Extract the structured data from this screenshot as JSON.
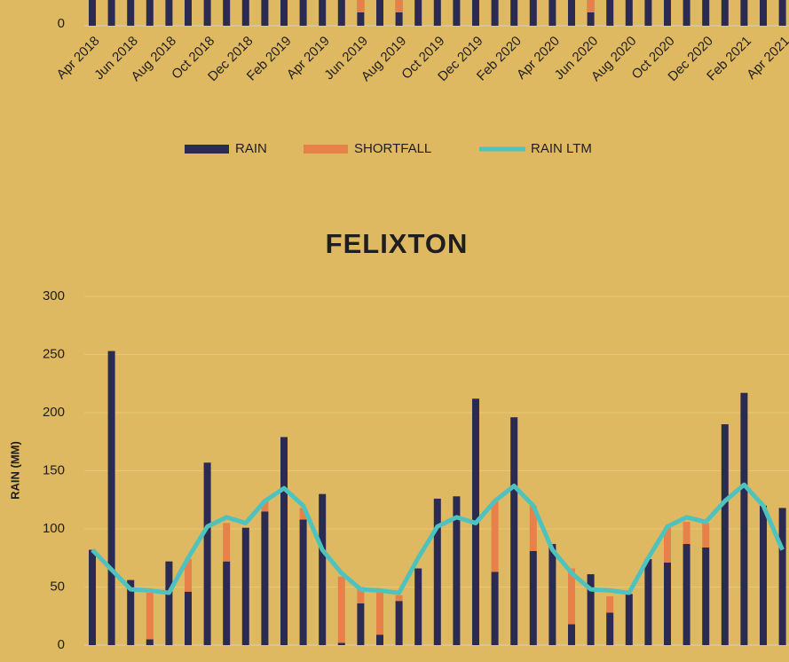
{
  "chart_data": [
    {
      "type": "bar",
      "categories": [
        "Apr 2018",
        null,
        "Jun 2018",
        null,
        "Aug 2018",
        null,
        "Oct 2018",
        null,
        "Dec 2018",
        null,
        "Feb 2019",
        null,
        "Apr 2019",
        null,
        "Jun 2019",
        null,
        "Aug 2019",
        null,
        "Oct 2019",
        null,
        "Dec 2019",
        null,
        "Feb 2020",
        null,
        "Apr 2020",
        null,
        "Jun 2020",
        null,
        "Aug 2020",
        null,
        "Oct 2020",
        null,
        "Dec 2020",
        null,
        "Feb 2021",
        null,
        "Apr 2021"
      ],
      "yticks": [
        0
      ],
      "legend": [
        {
          "name": "RAIN",
          "color": "#2b2a52",
          "kind": "bar"
        },
        {
          "name": "SHORTFALL",
          "color": "#e8804a",
          "kind": "bar"
        },
        {
          "name": "RAIN LTM",
          "color": "#4ec3bd",
          "kind": "line"
        }
      ]
    },
    {
      "type": "bar",
      "stacked": true,
      "title": "FELIXTON",
      "ylabel": "RAIN (MM)",
      "ylim": [
        0,
        300
      ],
      "yticks": [
        0,
        50,
        100,
        150,
        200,
        250,
        300
      ],
      "grid": true,
      "series": [
        {
          "color": "#2b2a52",
          "values": [
            82,
            253,
            56,
            5,
            72,
            46,
            157,
            72,
            101,
            115,
            179,
            108,
            130,
            2,
            36,
            9,
            38,
            66,
            126,
            128,
            212,
            63,
            196,
            81,
            87,
            18,
            61,
            28,
            44,
            74,
            71,
            87,
            84,
            190,
            217,
            120,
            118
          ]
        },
        {
          "color": "#e8804a",
          "values": [
            0,
            0,
            0,
            40,
            0,
            28,
            0,
            33,
            0,
            9,
            0,
            10,
            0,
            57,
            14,
            38,
            5,
            0,
            0,
            0,
            0,
            61,
            0,
            39,
            0,
            48,
            0,
            14,
            0,
            0,
            30,
            19,
            21,
            0,
            0,
            0,
            0
          ]
        },
        {
          "kind": "line",
          "color": "#4ec3bd",
          "values": [
            82,
            65,
            48,
            47,
            45,
            75,
            102,
            110,
            105,
            124,
            135,
            120,
            82,
            62,
            48,
            47,
            45,
            75,
            102,
            110,
            105,
            124,
            137,
            120,
            82,
            62,
            48,
            47,
            45,
            75,
            102,
            110,
            106,
            124,
            138,
            120,
            82
          ]
        }
      ]
    }
  ]
}
